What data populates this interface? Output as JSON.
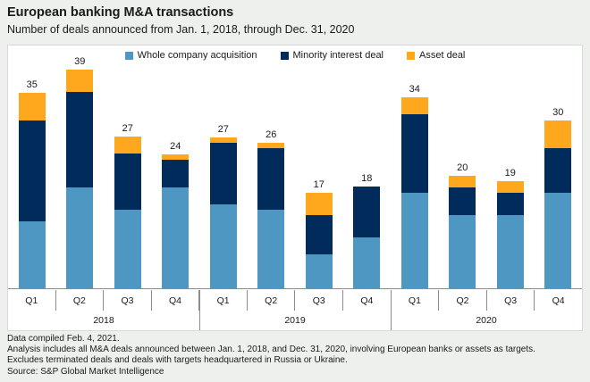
{
  "page": {
    "title": "European banking M&A transactions",
    "subtitle": "Number of deals announced from Jan. 1, 2018, through Dec. 31, 2020"
  },
  "chart_data": {
    "type": "bar",
    "stacked": true,
    "title": "European banking M&A transactions",
    "subtitle": "Number of deals announced from Jan. 1, 2018, through Dec. 31, 2020",
    "ylabel": "Number of deals",
    "categories": [
      "Q1",
      "Q2",
      "Q3",
      "Q4",
      "Q1",
      "Q2",
      "Q3",
      "Q4",
      "Q1",
      "Q2",
      "Q3",
      "Q4"
    ],
    "year_groups": [
      {
        "label": "2018",
        "span": 4
      },
      {
        "label": "2019",
        "span": 4
      },
      {
        "label": "2020",
        "span": 4
      }
    ],
    "series": [
      {
        "name": "Whole company acquisition",
        "color": "#4f97c3",
        "values": [
          12,
          18,
          14,
          18,
          15,
          14,
          6,
          9,
          17,
          13,
          13,
          17
        ]
      },
      {
        "name": "Minority interest deal",
        "color": "#002b5b",
        "values": [
          18,
          17,
          10,
          5,
          11,
          11,
          7,
          9,
          14,
          5,
          4,
          8
        ]
      },
      {
        "name": "Asset deal",
        "color": "#ffa81d",
        "values": [
          5,
          4,
          3,
          1,
          1,
          1,
          4,
          0,
          3,
          2,
          2,
          5
        ]
      }
    ],
    "totals": [
      35,
      39,
      27,
      24,
      27,
      26,
      17,
      18,
      34,
      20,
      19,
      30
    ],
    "ylim": [
      0,
      39
    ],
    "grid": false,
    "legend_position": "top center"
  },
  "footer": {
    "lines": [
      "Data compiled Feb. 4, 2021.",
      "Analysis includes all M&A deals announced between Jan. 1, 2018, and Dec. 31, 2020, involving European banks or assets as targets.",
      "Excludes terminated deals and deals with targets headquartered in Russia or Ukraine.",
      "Source: S&P Global Market Intelligence"
    ]
  },
  "colors": {
    "background": "#eef0ee",
    "panel": "#ffffff",
    "panel_border": "#d9d9d9",
    "axis_line": "#8c8c8c",
    "text": "#1a1a1a"
  }
}
